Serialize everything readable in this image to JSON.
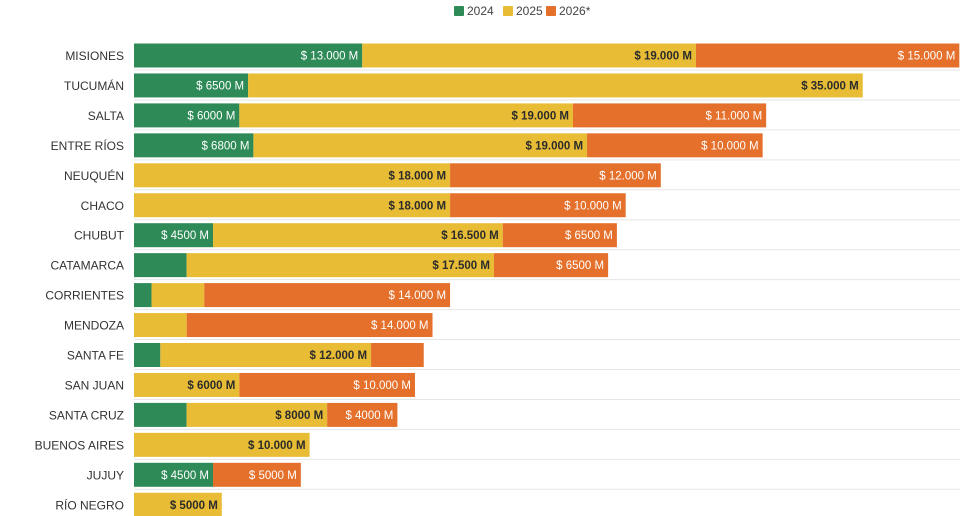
{
  "chart_data": {
    "type": "bar",
    "orientation": "horizontal",
    "stacked": true,
    "categories": [
      "MISIONES",
      "TUCUMÁN",
      "SALTA",
      "ENTRE RÍOS",
      "NEUQUÉN",
      "CHACO",
      "CHUBUT",
      "CATAMARCA",
      "CORRIENTES",
      "MENDOZA",
      "SANTA FE",
      "SAN JUAN",
      "SANTA CRUZ",
      "BUENOS AIRES",
      "JUJUY",
      "RÍO NEGRO"
    ],
    "series": [
      {
        "name": "2024",
        "color": "#2e8b57",
        "values": [
          13000,
          6500,
          6000,
          6800,
          0,
          0,
          4500,
          3000,
          1000,
          0,
          1500,
          0,
          3000,
          0,
          4500,
          0
        ],
        "labels": [
          "$ 13.000 M",
          "$ 6500 M",
          "$ 6000 M",
          "$ 6800 M",
          "",
          "",
          "$ 4500 M",
          "",
          "",
          "",
          "",
          "",
          "",
          "",
          "$ 4500 M",
          ""
        ]
      },
      {
        "name": "2025",
        "color": "#e8bd35",
        "values": [
          19000,
          35000,
          19000,
          19000,
          18000,
          18000,
          16500,
          17500,
          3000,
          3000,
          12000,
          6000,
          8000,
          10000,
          0,
          5000
        ],
        "labels": [
          "$ 19.000 M",
          "$ 35.000 M",
          "$ 19.000 M",
          "$ 19.000 M",
          "$ 18.000 M",
          "$ 18.000 M",
          "$ 16.500 M",
          "$ 17.500 M",
          "",
          "",
          "$ 12.000 M",
          "$ 6000 M",
          "$ 8000 M",
          "$ 10.000 M",
          "",
          "$ 5000 M"
        ]
      },
      {
        "name": "2026*",
        "color": "#e4702b",
        "values": [
          15000,
          0,
          11000,
          10000,
          12000,
          10000,
          6500,
          6500,
          14000,
          14000,
          3000,
          10000,
          4000,
          0,
          5000,
          0
        ],
        "labels": [
          "$ 15.000 M",
          "",
          "$ 11.000 M",
          "$ 10.000 M",
          "$ 12.000 M",
          "$ 10.000 M",
          "$ 6500 M",
          "$ 6500 M",
          "$ 14.000 M",
          "$ 14.000 M",
          "",
          "$ 10.000 M",
          "$ 4000 M",
          "",
          "$ 5000 M",
          ""
        ]
      }
    ],
    "title": "",
    "xlabel": "",
    "ylabel": "",
    "xlim": [
      0,
      47000
    ],
    "grid": true,
    "legend_position": "top-center"
  }
}
